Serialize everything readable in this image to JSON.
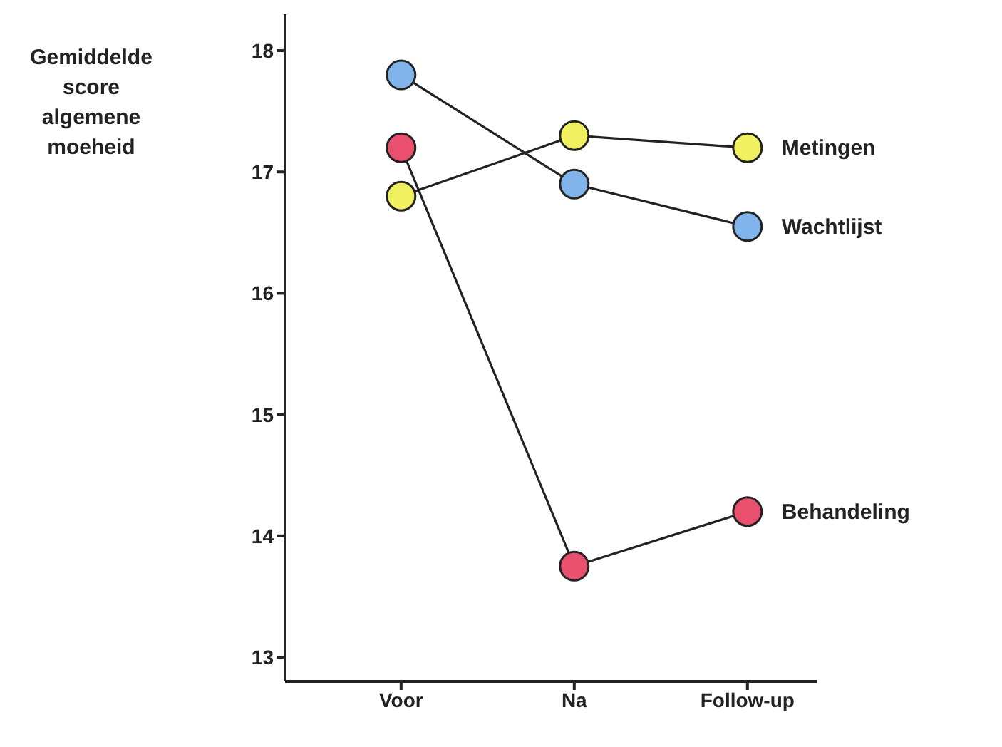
{
  "chart_data": {
    "type": "line",
    "ylabel": "Gemiddelde score algemene moeheid",
    "categories": [
      "Voor",
      "Na",
      "Follow-up"
    ],
    "series": [
      {
        "name": "Metingen",
        "color": "#f0f060",
        "values": [
          16.8,
          17.3,
          17.2
        ]
      },
      {
        "name": "Wachtlijst",
        "color": "#80b4ea",
        "values": [
          17.8,
          16.9,
          16.55
        ]
      },
      {
        "name": "Behandeling",
        "color": "#e8506e",
        "values": [
          17.2,
          13.75,
          14.2
        ]
      }
    ],
    "ylim": [
      12.8,
      18.3
    ],
    "yticks": [
      13,
      14,
      15,
      16,
      17,
      18
    ],
    "grid": false,
    "legend": false,
    "marker": "circle",
    "line_style": "solid"
  }
}
